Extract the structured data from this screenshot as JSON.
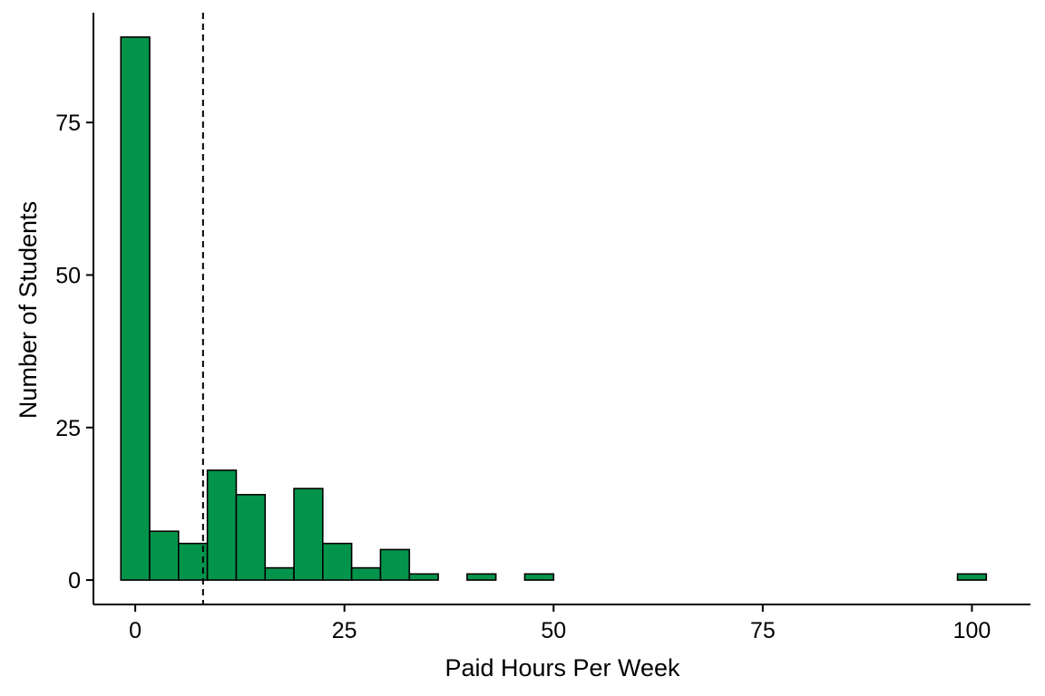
{
  "chart_data": {
    "type": "bar",
    "subtype": "histogram",
    "title": "",
    "xlabel": "Paid Hours Per Week",
    "ylabel": "Number of Students",
    "xlim": [
      -5,
      107
    ],
    "ylim": [
      -4,
      93
    ],
    "x_ticks": [
      0,
      25,
      50,
      75,
      100
    ],
    "x_tick_labels": [
      "0",
      "25",
      "50",
      "75",
      "100"
    ],
    "y_ticks": [
      0,
      25,
      50,
      75
    ],
    "y_tick_labels": [
      "0",
      "25",
      "50",
      "75"
    ],
    "bin_width": 3.45,
    "bins": [
      {
        "x0": -1.72,
        "x1": 1.72,
        "count": 89
      },
      {
        "x0": 1.72,
        "x1": 5.17,
        "count": 8
      },
      {
        "x0": 5.17,
        "x1": 8.62,
        "count": 6
      },
      {
        "x0": 8.62,
        "x1": 12.07,
        "count": 18
      },
      {
        "x0": 12.07,
        "x1": 15.52,
        "count": 14
      },
      {
        "x0": 15.52,
        "x1": 18.97,
        "count": 2
      },
      {
        "x0": 18.97,
        "x1": 22.41,
        "count": 15
      },
      {
        "x0": 22.41,
        "x1": 25.86,
        "count": 6
      },
      {
        "x0": 25.86,
        "x1": 29.31,
        "count": 2
      },
      {
        "x0": 29.31,
        "x1": 32.76,
        "count": 5
      },
      {
        "x0": 32.76,
        "x1": 36.21,
        "count": 1
      },
      {
        "x0": 36.21,
        "x1": 39.66,
        "count": 0
      },
      {
        "x0": 39.66,
        "x1": 43.1,
        "count": 1
      },
      {
        "x0": 43.1,
        "x1": 46.55,
        "count": 0
      },
      {
        "x0": 46.55,
        "x1": 50.0,
        "count": 1
      },
      {
        "x0": 50.0,
        "x1": 53.45,
        "count": 0
      },
      {
        "x0": 53.45,
        "x1": 56.9,
        "count": 0
      },
      {
        "x0": 56.9,
        "x1": 60.34,
        "count": 0
      },
      {
        "x0": 60.34,
        "x1": 63.79,
        "count": 0
      },
      {
        "x0": 63.79,
        "x1": 67.24,
        "count": 0
      },
      {
        "x0": 67.24,
        "x1": 70.69,
        "count": 0
      },
      {
        "x0": 70.69,
        "x1": 74.14,
        "count": 0
      },
      {
        "x0": 74.14,
        "x1": 77.59,
        "count": 0
      },
      {
        "x0": 77.59,
        "x1": 81.03,
        "count": 0
      },
      {
        "x0": 81.03,
        "x1": 84.48,
        "count": 0
      },
      {
        "x0": 84.48,
        "x1": 87.93,
        "count": 0
      },
      {
        "x0": 87.93,
        "x1": 91.38,
        "count": 0
      },
      {
        "x0": 91.38,
        "x1": 94.83,
        "count": 0
      },
      {
        "x0": 94.83,
        "x1": 98.28,
        "count": 0
      },
      {
        "x0": 98.28,
        "x1": 101.72,
        "count": 1
      }
    ],
    "reference_line": {
      "x": 8.1,
      "style": "dashed",
      "color": "#000000"
    },
    "bar_fill": "#03944C",
    "bar_outline": "#000000",
    "grid": false,
    "legend": "none"
  }
}
